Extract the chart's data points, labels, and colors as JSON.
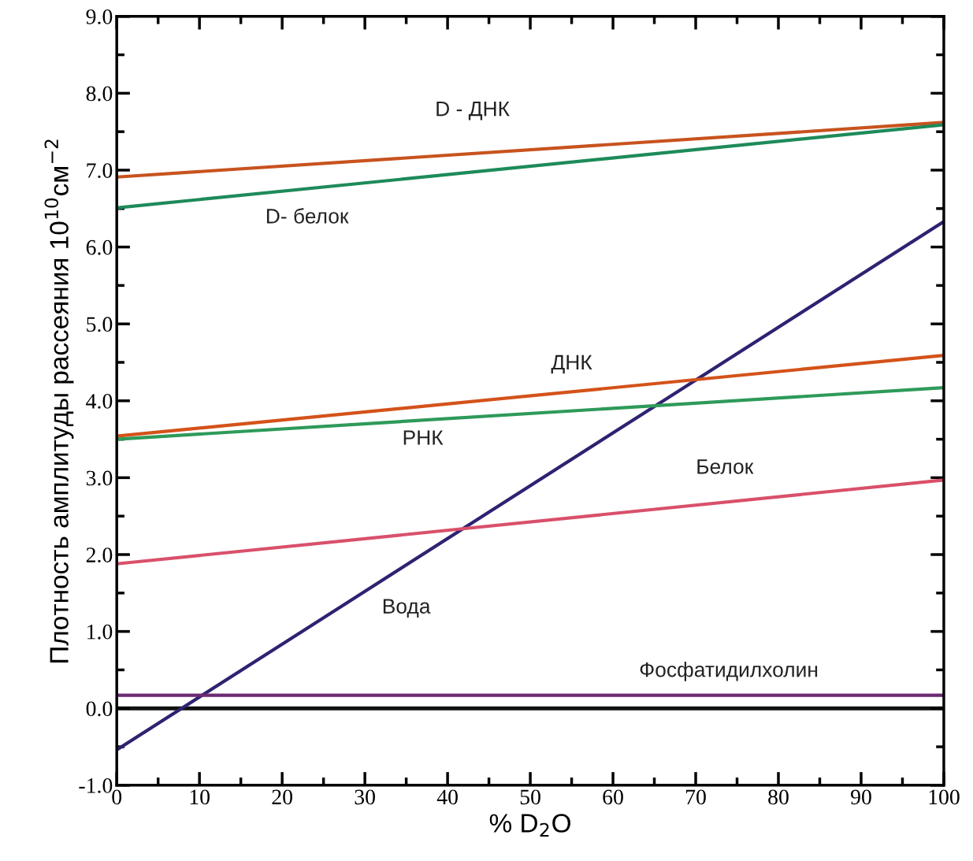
{
  "chart_data": {
    "type": "line",
    "xlabel": "% D$_{2}$O",
    "ylabel": "Плотность амплитуды рассеяния 10$^{10}$см$^{−2}$",
    "xlim": [
      0,
      100
    ],
    "ylim": [
      -1.0,
      9.0
    ],
    "xticks": [
      0,
      10,
      20,
      30,
      40,
      50,
      60,
      70,
      80,
      90,
      100
    ],
    "yticks": [
      {
        "value": -1,
        "label": "-1.0"
      },
      {
        "value": 0,
        "label": "0.0"
      },
      {
        "value": 1,
        "label": "1.0"
      },
      {
        "value": 2,
        "label": "2.0"
      },
      {
        "value": 3,
        "label": "3.0"
      },
      {
        "value": 4,
        "label": "4.0"
      },
      {
        "value": 5,
        "label": "5.0"
      },
      {
        "value": 6,
        "label": "6.0"
      },
      {
        "value": 7,
        "label": "7.0"
      },
      {
        "value": 8,
        "label": "8.0"
      },
      {
        "value": 9,
        "label": "9.0"
      }
    ],
    "x": [
      0,
      100
    ],
    "series": [
      {
        "name": "D - ДНК",
        "color": "#c8531e",
        "values": [
          6.91,
          7.62
        ]
      },
      {
        "name": "D- белок",
        "color": "#1e8a5a",
        "values": [
          6.51,
          7.59
        ]
      },
      {
        "name": "Вода",
        "color": "#2e2272",
        "values": [
          -0.54,
          6.33
        ]
      },
      {
        "name": "ДНК",
        "color": "#d4521a",
        "values": [
          3.54,
          4.59
        ]
      },
      {
        "name": "РНК",
        "color": "#2e9a5a",
        "values": [
          3.5,
          4.17
        ]
      },
      {
        "name": "Белок",
        "color": "#d9506a",
        "values": [
          1.88,
          2.97
        ]
      },
      {
        "name": "Фосфатидилхолин",
        "color": "#6a2a72",
        "values": [
          0.17,
          0.17
        ]
      }
    ],
    "ref_lines": [
      {
        "axis": "y",
        "value": 0,
        "color": "#111111"
      }
    ],
    "grid": false,
    "legend": false,
    "marker": "none",
    "line_style": "solid"
  }
}
